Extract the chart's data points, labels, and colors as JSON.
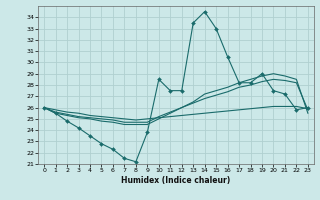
{
  "xlabel": "Humidex (Indice chaleur)",
  "bg_color": "#cce8e8",
  "grid_color": "#b0d0d0",
  "line_color": "#1a6b6b",
  "xlim": [
    -0.5,
    23.5
  ],
  "ylim": [
    21,
    35
  ],
  "yticks": [
    21,
    22,
    23,
    24,
    25,
    26,
    27,
    28,
    29,
    30,
    31,
    32,
    33,
    34
  ],
  "xticks": [
    0,
    1,
    2,
    3,
    4,
    5,
    6,
    7,
    8,
    9,
    10,
    11,
    12,
    13,
    14,
    15,
    16,
    17,
    18,
    19,
    20,
    21,
    22,
    23
  ],
  "line_main": [
    26.0,
    25.5,
    24.8,
    24.2,
    23.5,
    22.8,
    22.3,
    21.5,
    21.2,
    23.8,
    28.5,
    27.5,
    27.5,
    33.5,
    34.5,
    33.0,
    30.5,
    28.2,
    28.2,
    29.0,
    27.5,
    27.2,
    25.8,
    26.0
  ],
  "line_upper": [
    26.0,
    25.5,
    25.3,
    25.1,
    25.0,
    24.8,
    24.7,
    24.5,
    24.5,
    24.5,
    25.0,
    25.5,
    26.0,
    26.5,
    27.2,
    27.5,
    27.8,
    28.2,
    28.5,
    28.8,
    29.0,
    28.8,
    28.5,
    25.5
  ],
  "line_mid": [
    26.0,
    25.6,
    25.4,
    25.2,
    25.1,
    25.0,
    24.9,
    24.7,
    24.7,
    24.7,
    25.2,
    25.6,
    26.0,
    26.4,
    26.8,
    27.1,
    27.4,
    27.8,
    28.0,
    28.3,
    28.5,
    28.4,
    28.2,
    25.8
  ],
  "line_lower": [
    26.0,
    25.8,
    25.6,
    25.5,
    25.3,
    25.2,
    25.1,
    25.0,
    24.9,
    25.0,
    25.1,
    25.2,
    25.3,
    25.4,
    25.5,
    25.6,
    25.7,
    25.8,
    25.9,
    26.0,
    26.1,
    26.1,
    26.1,
    25.9
  ]
}
